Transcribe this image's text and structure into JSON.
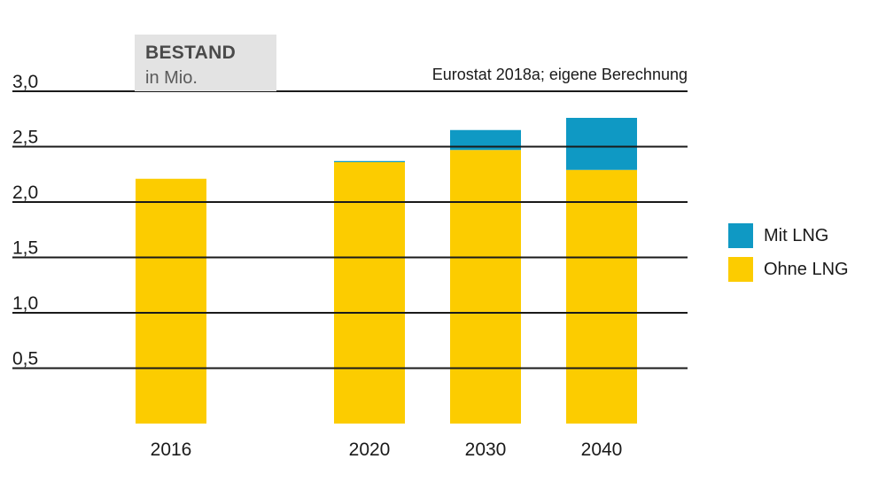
{
  "header": {
    "title": "BESTAND",
    "subtitle": "in Mio.",
    "source": "Eurostat 2018a; eigene Berechnung"
  },
  "colors": {
    "mit_lng": "#0f99c4",
    "ohne_lng": "#fccc00",
    "gridline": "#1a1a1a",
    "title_box": "#e3e3e3"
  },
  "legend": [
    {
      "key": "mit_lng",
      "label": "Mit LNG"
    },
    {
      "key": "ohne_lng",
      "label": "Ohne LNG"
    }
  ],
  "chart_data": {
    "type": "bar",
    "stacked": true,
    "title": "BESTAND",
    "ylabel": "in Mio.",
    "ylim": [
      0,
      3.0
    ],
    "yticks": [
      "0,5",
      "1,0",
      "1,5",
      "2,0",
      "2,5",
      "3,0"
    ],
    "ytick_values": [
      0.5,
      1.0,
      1.5,
      2.0,
      2.5,
      3.0
    ],
    "grid": true,
    "legend_position": "right",
    "categories": [
      "2016",
      "2020",
      "2030",
      "2040"
    ],
    "series": [
      {
        "name": "Ohne LNG",
        "values": [
          2.21,
          2.36,
          2.47,
          2.29
        ]
      },
      {
        "name": "Mit LNG",
        "values": [
          0.0,
          0.01,
          0.18,
          0.47
        ]
      }
    ]
  }
}
